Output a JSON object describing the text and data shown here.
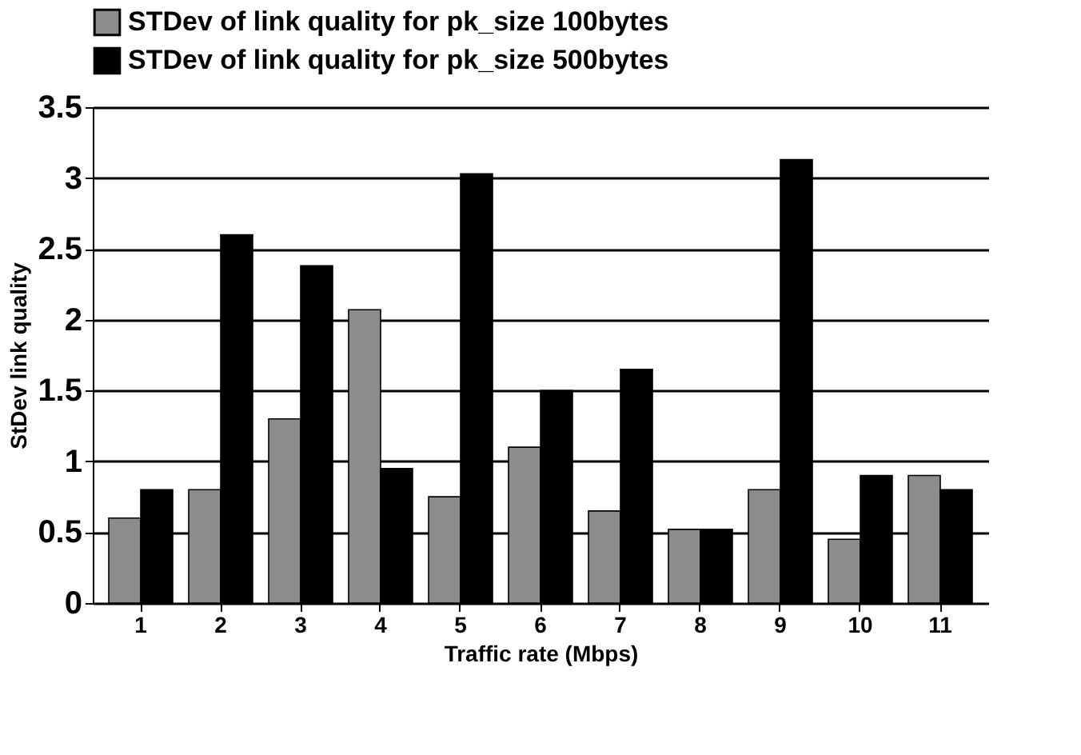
{
  "chart_data": {
    "type": "bar",
    "xlabel": "Traffic rate (Mbps)",
    "ylabel": "StDev link quality",
    "categories": [
      "1",
      "2",
      "3",
      "4",
      "5",
      "6",
      "7",
      "8",
      "9",
      "10",
      "11"
    ],
    "series": [
      {
        "name": "STDev of link quality for pk_size 100bytes",
        "color": "#8c8c8c",
        "values": [
          0.6,
          0.8,
          1.3,
          2.07,
          0.75,
          1.1,
          0.65,
          0.52,
          0.8,
          0.45,
          0.9
        ]
      },
      {
        "name": "STDev of link quality for pk_size 500bytes",
        "color": "#000000",
        "values": [
          0.8,
          2.6,
          2.38,
          0.95,
          3.03,
          1.5,
          1.65,
          0.52,
          3.13,
          0.9,
          0.8
        ]
      }
    ],
    "ylim": [
      0,
      3.5
    ],
    "yticks": [
      0,
      0.5,
      1,
      1.5,
      2,
      2.5,
      3,
      3.5
    ],
    "grid": "y",
    "legend": "top"
  }
}
